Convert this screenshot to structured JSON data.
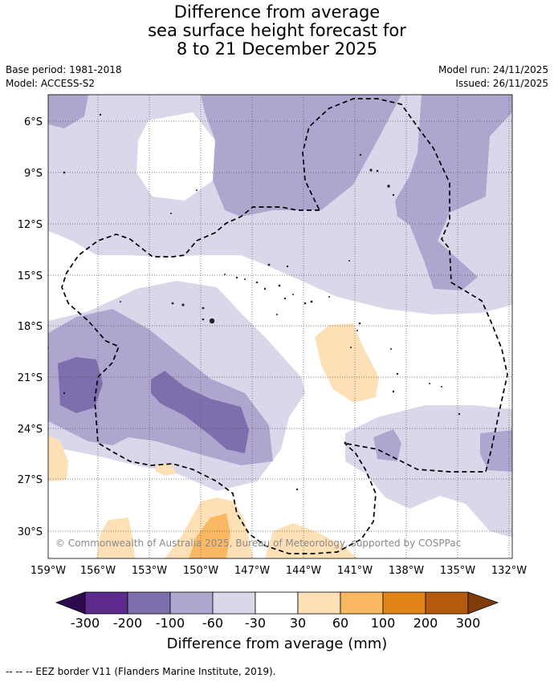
{
  "title": {
    "line1": "Difference from average",
    "line2": "sea surface height forecast for",
    "line3": "8 to 21 December 2025"
  },
  "meta": {
    "base_period": "Base period: 1981-2018",
    "model": "Model: ACCESS-S2",
    "model_run": "Model run: 24/11/2025",
    "issued": "Issued: 26/11/2025"
  },
  "map": {
    "lat_labels": [
      "6°S",
      "9°S",
      "12°S",
      "15°S",
      "18°S",
      "21°S",
      "24°S",
      "27°S",
      "30°S"
    ],
    "lon_labels": [
      "159°W",
      "156°W",
      "153°W",
      "150°W",
      "147°W",
      "144°W",
      "141°W",
      "138°W",
      "135°W",
      "132°W"
    ],
    "copyright": "© Commonwealth of Australia 2025, Bureau of Meteorology, supported by COSPPac"
  },
  "colorbar": {
    "title": "Difference from average (mm)",
    "ticks": [
      "-300",
      "-200",
      "-100",
      "-60",
      "-30",
      "30",
      "60",
      "100",
      "200",
      "300"
    ],
    "colors": {
      "below_min": "#2d0a4e",
      "n300_200": "#5b2a8a",
      "n200_100": "#7d6fae",
      "n100_60": "#afa6d0",
      "n60_30": "#d8d8ea",
      "neutral": "#ffffff",
      "p30_60": "#fde0b6",
      "p60_100": "#fbb862",
      "p100_200": "#e38418",
      "p200_300": "#b45a0c",
      "above_max": "#7f3b08"
    }
  },
  "legend": {
    "eez_note": "--  --  -- EEZ border V11 (Flanders Marine Institute, 2019)."
  }
}
